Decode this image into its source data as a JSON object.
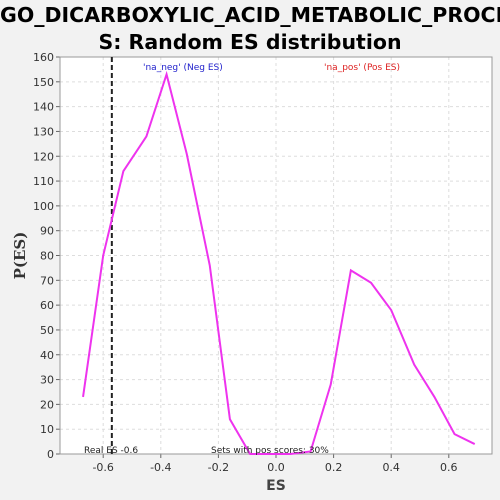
{
  "title_line1": "GO_DICARBOXYLIC_ACID_METABOLIC_PROCES",
  "title_line2": "S: Random ES distribution",
  "colors": {
    "curve": "#ee33ee",
    "neg": "#2222cc",
    "pos": "#dd2222",
    "real_es_line": "#222222",
    "plot_bg": "#ffffff",
    "grid": "#dddddd"
  },
  "chart_data": {
    "type": "line",
    "xlabel": "ES",
    "ylabel": "P(ES)",
    "xlim": [
      -0.75,
      0.75
    ],
    "ylim": [
      0,
      160
    ],
    "x_ticks": [
      -0.6,
      -0.4,
      -0.2,
      0.0,
      0.2,
      0.4,
      0.6
    ],
    "x_tick_labels": [
      "-0.6",
      "-0.4",
      "-0.2",
      "0.0",
      "0.2",
      "0.4",
      "0.6"
    ],
    "y_ticks": [
      0,
      10,
      20,
      30,
      40,
      50,
      60,
      70,
      80,
      90,
      100,
      110,
      120,
      130,
      140,
      150,
      160
    ],
    "y_tick_labels": [
      "0",
      "10",
      "20",
      "30",
      "40",
      "50",
      "60",
      "70",
      "80",
      "90",
      "100",
      "110",
      "120",
      "130",
      "140",
      "150",
      "160"
    ],
    "grid": true,
    "series": [
      {
        "x": [
          -0.67,
          -0.6,
          -0.53,
          -0.45,
          -0.38,
          -0.31,
          -0.23,
          -0.16,
          -0.09,
          -0.02,
          0.05,
          0.12,
          0.19,
          0.26,
          0.33,
          0.4,
          0.48,
          0.55,
          0.62,
          0.69
        ],
        "y": [
          23,
          80,
          114,
          128,
          153,
          121,
          76,
          14,
          0,
          0,
          0,
          1,
          28,
          74,
          69,
          58,
          36,
          23,
          8,
          4
        ]
      }
    ],
    "real_es": -0.57,
    "annotations": {
      "neg_label": "'na_neg' (Neg ES)",
      "pos_label": "'na_pos' (Pos ES)",
      "real_es_text": "Real ES -0.6",
      "pos_scores_text": "Sets with pos scores: 30%"
    }
  }
}
